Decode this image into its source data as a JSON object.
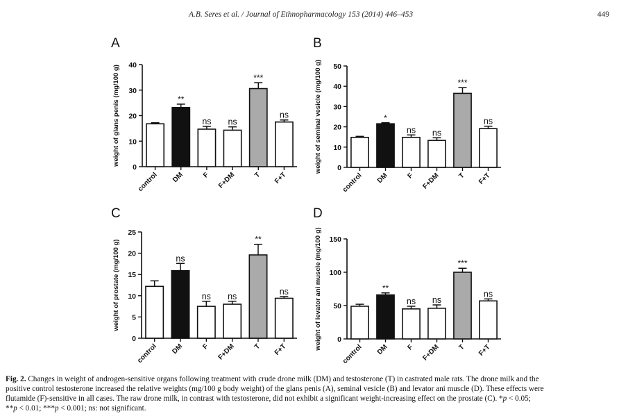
{
  "header": {
    "running_head": "A.B. Seres et al. / Journal of Ethnopharmacology 153 (2014) 446–453",
    "page_number": "449"
  },
  "caption": {
    "label": "Fig. 2.",
    "line1": "Changes in weight of androgen-sensitive organs following treatment with crude drone milk (DM) and testosterone (T) in castrated male rats. The drone milk and the",
    "line2": "positive control testosterone increased the relative weights (mg/100 g body weight) of the glans penis (A), seminal vesicle (B) and levator ani muscle (D). These effects were",
    "line3_pre": "flutamide (F)-sensitive in all cases. The raw drone milk, in contrast with testosterone, did not exhibit a significant weight-increasing effect on the prostate (C). *",
    "line3_p": "p",
    "line3_post": " < 0.05;",
    "line4_a": "**",
    "line4_p1": "p",
    "line4_b": " < 0.01; ***",
    "line4_p2": "p",
    "line4_c": " < 0.001; ns: not significant."
  },
  "colors": {
    "control": "#ffffff",
    "DM": "#111111",
    "F": "#ffffff",
    "F+DM": "#ffffff",
    "T": "#aaaaaa",
    "F+T": "#ffffff",
    "axis": "#111111"
  },
  "chart_data": [
    {
      "type": "bar",
      "panel": "A",
      "title": "",
      "xlabel": "",
      "ylabel": "weight of glans penis (mg/100 g)",
      "categories": [
        "control",
        "DM",
        "F",
        "F+DM",
        "T",
        "F+T"
      ],
      "values": [
        16.8,
        23.2,
        14.7,
        14.3,
        30.6,
        17.5
      ],
      "errors": [
        0.4,
        1.3,
        1.1,
        1.3,
        2.3,
        0.8
      ],
      "annotations": [
        "",
        "**",
        "ns",
        "ns",
        "***",
        "ns"
      ],
      "ylim": [
        0,
        40
      ],
      "yticks": [
        0,
        10,
        20,
        30,
        40
      ],
      "grid": false
    },
    {
      "type": "bar",
      "panel": "B",
      "title": "",
      "xlabel": "",
      "ylabel": "weight of seminal vesicle (mg/100 g)",
      "categories": [
        "control",
        "DM",
        "F",
        "F+DM",
        "T",
        "F+T"
      ],
      "values": [
        14.8,
        21.5,
        14.8,
        13.3,
        36.5,
        19.1
      ],
      "errors": [
        0.5,
        0.5,
        1.2,
        1.3,
        2.8,
        1.2
      ],
      "annotations": [
        "",
        "*",
        "ns",
        "ns",
        "***",
        "ns"
      ],
      "ylim": [
        0,
        50
      ],
      "yticks": [
        0,
        10,
        20,
        30,
        40,
        50
      ],
      "grid": false
    },
    {
      "type": "bar",
      "panel": "C",
      "title": "",
      "xlabel": "",
      "ylabel": "weight of prostate (mg/100 g)",
      "categories": [
        "control",
        "DM",
        "F",
        "F+DM",
        "T",
        "F+T"
      ],
      "values": [
        12.2,
        15.9,
        7.5,
        8.0,
        19.6,
        9.4
      ],
      "errors": [
        1.3,
        1.7,
        1.2,
        0.7,
        2.5,
        0.4
      ],
      "annotations": [
        "",
        "ns",
        "ns",
        "ns",
        "**",
        "ns"
      ],
      "ylim": [
        0,
        25
      ],
      "yticks": [
        0,
        5,
        10,
        15,
        20,
        25
      ],
      "grid": false
    },
    {
      "type": "bar",
      "panel": "D",
      "title": "",
      "xlabel": "",
      "ylabel": "weight of levator ani muscle (mg/100 g)",
      "categories": [
        "control",
        "DM",
        "F",
        "F+DM",
        "T",
        "F+T"
      ],
      "values": [
        49,
        66,
        45,
        46,
        100,
        57
      ],
      "errors": [
        3,
        3,
        4,
        5,
        6,
        3
      ],
      "annotations": [
        "",
        "**",
        "ns",
        "ns",
        "***",
        "ns"
      ],
      "ylim": [
        0,
        150
      ],
      "yticks": [
        0,
        50,
        100,
        150
      ],
      "grid": false
    }
  ]
}
